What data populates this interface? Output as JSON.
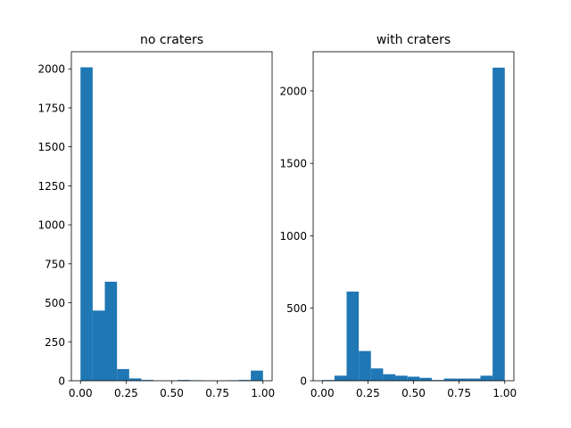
{
  "chart_data": [
    {
      "type": "bar",
      "title": "no craters",
      "xlabel": "",
      "ylabel": "",
      "xlim": [
        -0.05,
        1.05
      ],
      "ylim": [
        0,
        2110
      ],
      "xticks": [
        0.0,
        0.25,
        0.5,
        0.75,
        1.0
      ],
      "xtick_labels": [
        "0.00",
        "0.25",
        "0.50",
        "0.75",
        "1.00"
      ],
      "yticks": [
        0,
        250,
        500,
        750,
        1000,
        1250,
        1500,
        1750,
        2000
      ],
      "ytick_labels": [
        "0",
        "250",
        "500",
        "750",
        "1000",
        "1250",
        "1500",
        "1750",
        "2000"
      ],
      "bin_edges": [
        0.0,
        0.0667,
        0.1333,
        0.2,
        0.2667,
        0.3333,
        0.4,
        0.4667,
        0.5333,
        0.6,
        0.6667,
        0.7333,
        0.8,
        0.8667,
        0.9333,
        1.0
      ],
      "values": [
        2010,
        450,
        635,
        75,
        15,
        5,
        0,
        0,
        5,
        3,
        0,
        0,
        3,
        5,
        65
      ],
      "color": "#1f77b4"
    },
    {
      "type": "bar",
      "title": "with craters",
      "xlabel": "",
      "ylabel": "",
      "xlim": [
        -0.05,
        1.05
      ],
      "ylim": [
        0,
        2270
      ],
      "xticks": [
        0.0,
        0.25,
        0.5,
        0.75,
        1.0
      ],
      "xtick_labels": [
        "0.00",
        "0.25",
        "0.50",
        "0.75",
        "1.00"
      ],
      "yticks": [
        0,
        500,
        1000,
        1500,
        2000
      ],
      "ytick_labels": [
        "0",
        "500",
        "1000",
        "1500",
        "2000"
      ],
      "bin_edges": [
        0.0,
        0.0667,
        0.1333,
        0.2,
        0.2667,
        0.3333,
        0.4,
        0.4667,
        0.5333,
        0.6,
        0.6667,
        0.7333,
        0.8,
        0.8667,
        0.9333,
        1.0
      ],
      "values": [
        5,
        35,
        615,
        205,
        85,
        45,
        35,
        28,
        20,
        5,
        15,
        15,
        15,
        35,
        2160
      ],
      "color": "#1f77b4"
    }
  ]
}
